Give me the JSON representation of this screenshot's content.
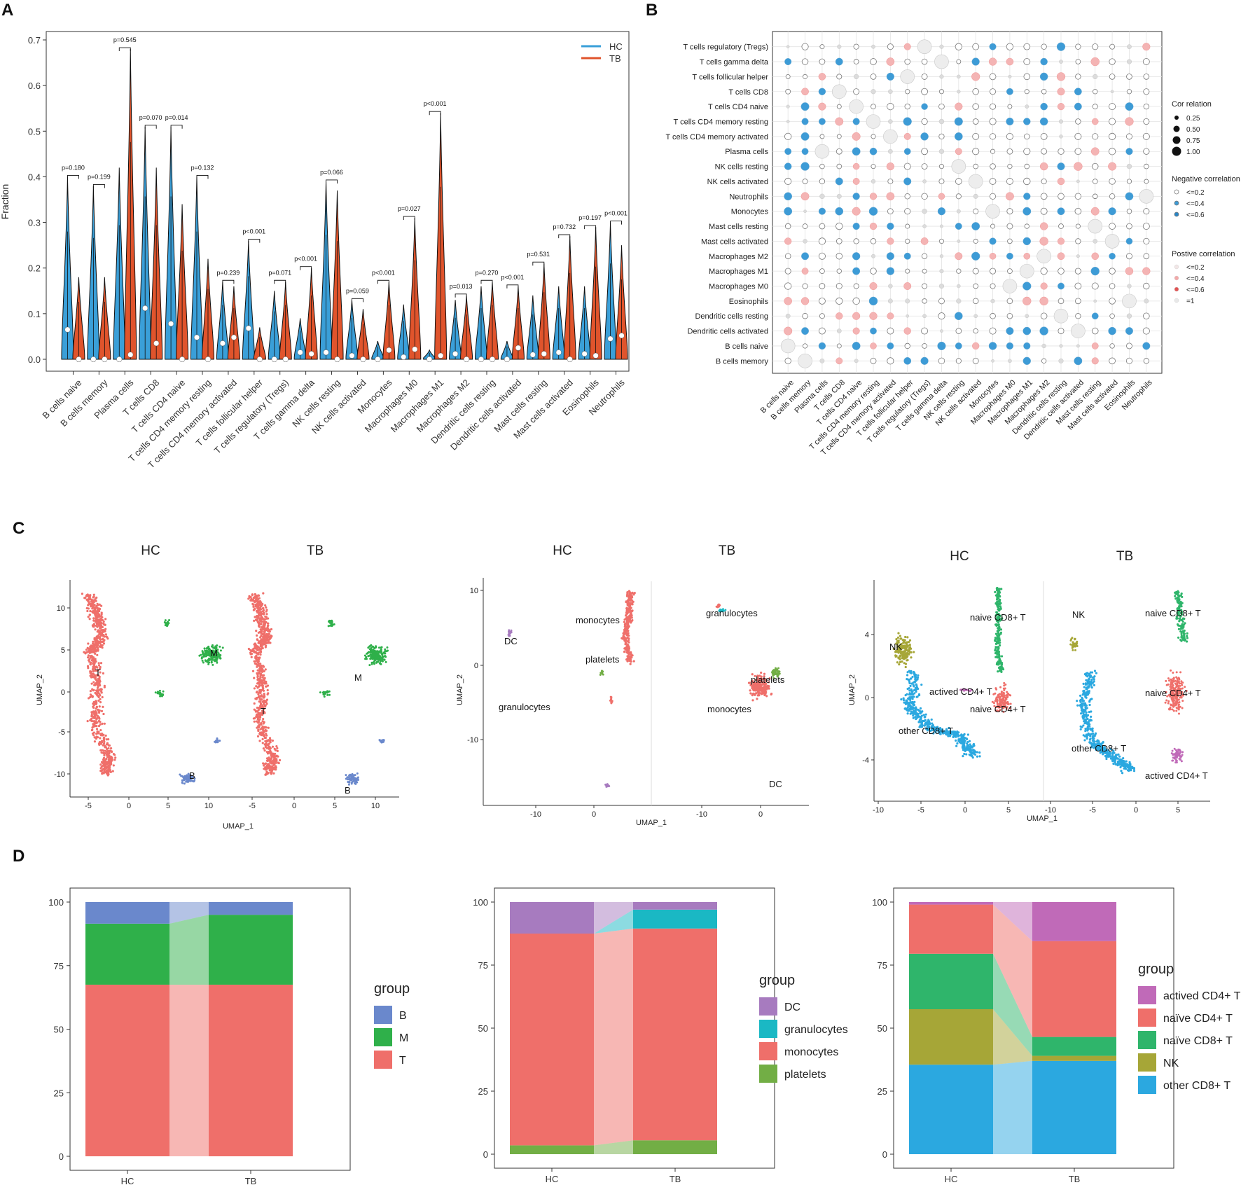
{
  "panels": {
    "A": "A",
    "B": "B",
    "C": "C",
    "D": "D"
  },
  "colors": {
    "HC": "#3a9fd8",
    "TB": "#e0542c",
    "B": "#6a88cc",
    "M": "#2fb04a",
    "T": "#ef6f6a",
    "DC": "#a77bbf",
    "granulocytes": "#1ab8c4",
    "monocytes": "#ef6f6a",
    "platelets": "#72ae45",
    "actived_CD4": "#c06ab8",
    "naive_CD4": "#ef6f6a",
    "naive_CD8": "#2fb56b",
    "NK": "#a6a637",
    "other_CD8": "#2ba8e0",
    "neg": "#3d9bd6",
    "pos": "#ec7a7a"
  },
  "chart_data": [
    {
      "panel": "A",
      "type": "violin",
      "ylabel": "Fraction",
      "ylim": [
        0,
        0.7
      ],
      "yticks": [
        "0.0",
        "0.1",
        "0.2",
        "0.3",
        "0.4",
        "0.5",
        "0.6",
        "0.7"
      ],
      "legend": [
        "HC",
        "TB"
      ],
      "categories": [
        "B cells naive",
        "B cells memory",
        "Plasma cells",
        "T cells CD8",
        "T cells CD4 naive",
        "T cells CD4 memory resting",
        "T cells CD4 memory activated",
        "T cells follicular helper",
        "T cells regulatory (Tregs)",
        "T cells gamma delta",
        "NK cells resting",
        "NK cells activated",
        "Monocytes",
        "Macrophages M0",
        "Macrophages M1",
        "Macrophages M2",
        "Dendritic cells resting",
        "Dendritic cells activated",
        "Mast cells resting",
        "Mast cells activated",
        "Eosinophils",
        "Neutrophils"
      ],
      "hc_max": [
        0.4,
        0.38,
        0.42,
        0.51,
        0.51,
        0.4,
        0.17,
        0.26,
        0.15,
        0.09,
        0.39,
        0.13,
        0.04,
        0.12,
        0.02,
        0.13,
        0.16,
        0.04,
        0.14,
        0.16,
        0.16,
        0.3
      ],
      "tb_max": [
        0.18,
        0.18,
        0.68,
        0.42,
        0.34,
        0.22,
        0.16,
        0.07,
        0.17,
        0.2,
        0.37,
        0.11,
        0.17,
        0.31,
        0.54,
        0.14,
        0.17,
        0.16,
        0.21,
        0.27,
        0.29,
        0.25
      ],
      "hc_median": [
        0.065,
        0.0,
        0.0,
        0.112,
        0.078,
        0.048,
        0.035,
        0.068,
        0.0,
        0.015,
        0.015,
        0.008,
        0.0,
        0.005,
        0.0,
        0.012,
        0.0,
        0.0,
        0.01,
        0.015,
        0.012,
        0.045
      ],
      "tb_median": [
        0.0,
        0.0,
        0.01,
        0.035,
        0.0,
        0.0,
        0.048,
        0.0,
        0.0,
        0.012,
        0.0,
        0.0,
        0.02,
        0.022,
        0.008,
        0.0,
        0.0,
        0.025,
        0.012,
        0.0,
        0.008,
        0.052
      ],
      "pvalues": [
        "p=0.180",
        "p=0.199",
        "p=0.545",
        "p=0.070",
        "p=0.014",
        "p=0.132",
        "p=0.239",
        "p<0.001",
        "p=0.071",
        "p<0.001",
        "p=0.066",
        "p=0.059",
        "p<0.001",
        "p=0.027",
        "p<0.001",
        "p=0.013",
        "p=0.270",
        "p<0.001",
        "p=0.531",
        "p=0.732",
        "p=0.197",
        "p<0.001"
      ]
    },
    {
      "panel": "B",
      "type": "correlation-dotplot",
      "rows": [
        "T cells regulatory (Tregs)",
        "T cells gamma delta",
        "T cells follicular helper",
        "T cells CD8",
        "T cells CD4 naive",
        "T cells CD4 memory resting",
        "T cells CD4 memory activated",
        "Plasma cells",
        "NK cells resting",
        "NK cells activated",
        "Neutrophils",
        "Monocytes",
        "Mast cells resting",
        "Mast cells activated",
        "Macrophages M2",
        "Macrophages M1",
        "Macrophages M0",
        "Eosinophils",
        "Dendritic cells resting",
        "Dendritic cells activated",
        "B cells naive",
        "B cells memory"
      ],
      "columns": [
        "B cells naive",
        "B cells memory",
        "Plasma cells",
        "T cells CD8",
        "T cells CD4 naive",
        "T cells CD4 memory resting",
        "T cells CD4 memory activated",
        "T cells follicular helper",
        "T cells regulatory (Tregs)",
        "T cells gamma delta",
        "NK cells resting",
        "NK cells activated",
        "Monocytes",
        "Macrophages M0",
        "Macrophages M1",
        "Macrophages M2",
        "Dendritic cells resting",
        "Dendritic cells activated",
        "Mast cells resting",
        "Mast cells activated",
        "Eosinophils",
        "Neutrophils"
      ],
      "legend_size_title": "Cor relation",
      "legend_sizes": [
        "0.25",
        "0.50",
        "0.75",
        "1.00"
      ],
      "legend_neg_title": "Negative correlation",
      "legend_neg": [
        "<=0.2",
        "<=0.4",
        "<=0.6"
      ],
      "legend_pos_title": "Postive correlation",
      "legend_pos": [
        "<=0.2",
        "<=0.4",
        "<=0.6",
        "=1"
      ]
    },
    {
      "panel": "C",
      "type": "umap",
      "xlabel": "UMAP_1",
      "ylabel": "UMAP_2",
      "plots": [
        {
          "titles": [
            "HC",
            "TB"
          ],
          "xticks": [
            "-5",
            "0",
            "5",
            "10",
            "-5",
            "0",
            "5",
            "10"
          ],
          "yticks": [
            "10",
            "5",
            "0",
            "-5",
            "-10"
          ],
          "labels": [
            "T",
            "M",
            "B",
            "T",
            "M",
            "B"
          ]
        },
        {
          "titles": [
            "HC",
            "TB"
          ],
          "xticks": [
            "-10",
            "0",
            "-10",
            "0"
          ],
          "yticks": [
            "10",
            "0",
            "-10"
          ],
          "labels": [
            "DC",
            "monocytes",
            "platelets",
            "granulocytes",
            "granulocytes",
            "platelets",
            "monocytes",
            "DC"
          ]
        },
        {
          "titles": [
            "HC",
            "TB"
          ],
          "xticks": [
            "-10",
            "-5",
            "0",
            "5",
            "-10",
            "-5",
            "0",
            "5"
          ],
          "yticks": [
            "4",
            "0",
            "-4"
          ],
          "labels": [
            "NK",
            "naive CD8+ T",
            "actived CD4+ T",
            "naive CD4+ T",
            "other CD8+ T",
            "naive CD8+ T",
            "NK",
            "naive CD4+ T",
            "other CD8+ T",
            "actived CD4+ T"
          ]
        }
      ]
    },
    {
      "panel": "D",
      "type": "stacked-bar",
      "yticks": [
        "100",
        "75",
        "50",
        "25",
        "0"
      ],
      "ylim": [
        0,
        100
      ],
      "charts": [
        {
          "categories": [
            "HC",
            "TB"
          ],
          "legend_title": "group",
          "groups": [
            "B",
            "M",
            "T"
          ],
          "series": [
            {
              "name": "T",
              "values": [
                67.5,
                67.5
              ]
            },
            {
              "name": "M",
              "values": [
                24,
                27.5
              ]
            },
            {
              "name": "B",
              "values": [
                8.5,
                5
              ]
            }
          ]
        },
        {
          "categories": [
            "HC",
            "TB"
          ],
          "legend_title": "group",
          "groups": [
            "DC",
            "granulocytes",
            "monocytes",
            "platelets"
          ],
          "series": [
            {
              "name": "platelets",
              "values": [
                3.5,
                5.5
              ]
            },
            {
              "name": "monocytes",
              "values": [
                84,
                84
              ]
            },
            {
              "name": "granulocytes",
              "values": [
                0,
                7.5
              ]
            },
            {
              "name": "DC",
              "values": [
                12.5,
                3
              ]
            }
          ]
        },
        {
          "categories": [
            "HC",
            "TB"
          ],
          "legend_title": "group",
          "groups": [
            "actived CD4+ T",
            "naïve CD4+ T",
            "naïve CD8+ T",
            "NK",
            "other CD8+ T"
          ],
          "series": [
            {
              "name": "other CD8+ T",
              "values": [
                35.5,
                37
              ]
            },
            {
              "name": "NK",
              "values": [
                22,
                2
              ]
            },
            {
              "name": "naïve CD8+ T",
              "values": [
                22,
                7.5
              ]
            },
            {
              "name": "naïve CD4+ T",
              "values": [
                19.5,
                38
              ]
            },
            {
              "name": "actived CD4+ T",
              "values": [
                1,
                15.5
              ]
            }
          ]
        }
      ]
    }
  ]
}
